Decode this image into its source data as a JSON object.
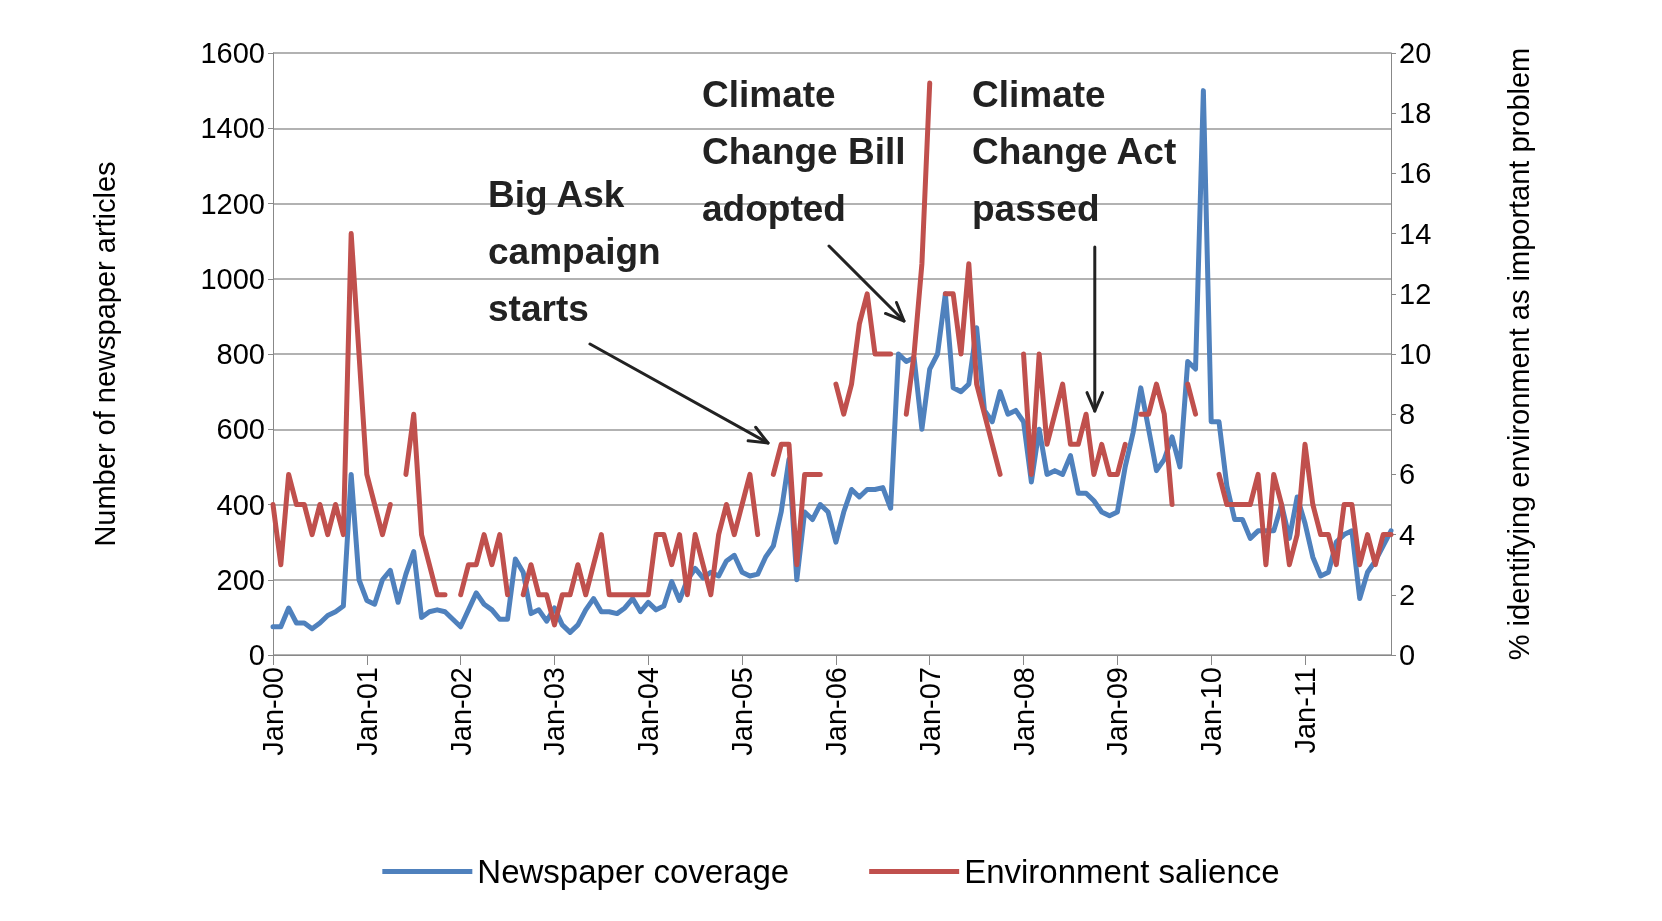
{
  "chart_data": {
    "type": "line",
    "ylabel": "Number of newspaper articles",
    "y2label": "% identifying environment as important problem",
    "categories": [
      "Jan-00",
      null,
      null,
      null,
      null,
      null,
      null,
      null,
      null,
      null,
      null,
      null,
      "Jan-01",
      null,
      null,
      null,
      null,
      null,
      null,
      null,
      null,
      null,
      null,
      null,
      "Jan-02",
      null,
      null,
      null,
      null,
      null,
      null,
      null,
      null,
      null,
      null,
      null,
      "Jan-03",
      null,
      null,
      null,
      null,
      null,
      null,
      null,
      null,
      null,
      null,
      null,
      "Jan-04",
      null,
      null,
      null,
      null,
      null,
      null,
      null,
      null,
      null,
      null,
      null,
      "Jan-05",
      null,
      null,
      null,
      null,
      null,
      null,
      null,
      null,
      null,
      null,
      null,
      "Jan-06",
      null,
      null,
      null,
      null,
      null,
      null,
      null,
      null,
      null,
      null,
      null,
      "Jan-07",
      null,
      null,
      null,
      null,
      null,
      null,
      null,
      null,
      null,
      null,
      null,
      "Jan-08",
      null,
      null,
      null,
      null,
      null,
      null,
      null,
      null,
      null,
      null,
      null,
      "Jan-09",
      null,
      null,
      null,
      null,
      null,
      null,
      null,
      null,
      null,
      null,
      null,
      "Jan-10",
      null,
      null,
      null,
      null,
      null,
      null,
      null,
      null,
      null,
      null,
      null,
      "Jan-11",
      null,
      null,
      null,
      null,
      null,
      null,
      null,
      null,
      null,
      null,
      null
    ],
    "series": [
      {
        "name": "Newspaper coverage",
        "color": "#4f81bd",
        "values": [
          75,
          75,
          125,
          85,
          85,
          70,
          85,
          105,
          115,
          130,
          480,
          200,
          145,
          135,
          200,
          225,
          140,
          215,
          275,
          100,
          115,
          120,
          115,
          95,
          75,
          120,
          165,
          135,
          120,
          95,
          95,
          255,
          220,
          110,
          120,
          90,
          125,
          80,
          60,
          80,
          120,
          150,
          115,
          115,
          110,
          125,
          150,
          115,
          140,
          120,
          130,
          195,
          145,
          200,
          230,
          205,
          220,
          210,
          250,
          265,
          220,
          210,
          215,
          260,
          290,
          380,
          520,
          200,
          380,
          360,
          400,
          380,
          300,
          380,
          440,
          420,
          440,
          440,
          445,
          390,
          800,
          780,
          790,
          600,
          760,
          800,
          960,
          710,
          700,
          720,
          870,
          650,
          620,
          700,
          640,
          650,
          620,
          460,
          600,
          480,
          490,
          480,
          530,
          430,
          430,
          410,
          380,
          370,
          380,
          500,
          590,
          710,
          600,
          490,
          520,
          580,
          500,
          780,
          760,
          1500,
          620,
          620,
          450,
          360,
          360,
          310,
          330,
          330,
          330,
          400,
          310,
          420,
          350,
          260,
          210,
          220,
          300,
          320,
          330,
          150,
          220,
          250,
          290,
          330
        ]
      },
      {
        "name": "Environment salience",
        "color": "#c0504d",
        "axis": "y2",
        "values": [
          5,
          3,
          6,
          5,
          5,
          4,
          5,
          4,
          5,
          4,
          14,
          10,
          6,
          5,
          4,
          5,
          null,
          6,
          8,
          4,
          3,
          2,
          2,
          null,
          2,
          3,
          3,
          4,
          3,
          4,
          2,
          null,
          2,
          3,
          2,
          2,
          1,
          2,
          2,
          3,
          2,
          3,
          4,
          2,
          2,
          2,
          2,
          2,
          2,
          4,
          4,
          3,
          4,
          2,
          4,
          3,
          2,
          4,
          5,
          4,
          5,
          6,
          4,
          null,
          6,
          7,
          7,
          3,
          6,
          6,
          6,
          null,
          9,
          8,
          9,
          11,
          12,
          10,
          10,
          10,
          null,
          8,
          10,
          13,
          19,
          null,
          12,
          12,
          10,
          13,
          9,
          8,
          7,
          6,
          null,
          null,
          10,
          6,
          10,
          7,
          8,
          9,
          7,
          7,
          8,
          6,
          7,
          6,
          6,
          7,
          null,
          8,
          8,
          9,
          8,
          5,
          null,
          9,
          8,
          null,
          null,
          6,
          5,
          5,
          5,
          5,
          6,
          3,
          6,
          5,
          3,
          4,
          7,
          5,
          4,
          4,
          3,
          5,
          5,
          3,
          4,
          3,
          4,
          4
        ]
      }
    ],
    "ylim": [
      0,
      1600
    ],
    "yticks": [
      0,
      200,
      400,
      600,
      800,
      1000,
      1200,
      1400,
      1600
    ],
    "y2lim": [
      0,
      20
    ],
    "y2ticks": [
      0,
      2,
      4,
      6,
      8,
      10,
      12,
      14,
      16,
      18,
      20
    ],
    "grid": "y",
    "legend": "bottom",
    "marker": "none",
    "line_style": "solid",
    "annotations": [
      "Big Ask campaign starts",
      "Climate Change Bill adopted",
      "Climate Change Act passed"
    ]
  }
}
